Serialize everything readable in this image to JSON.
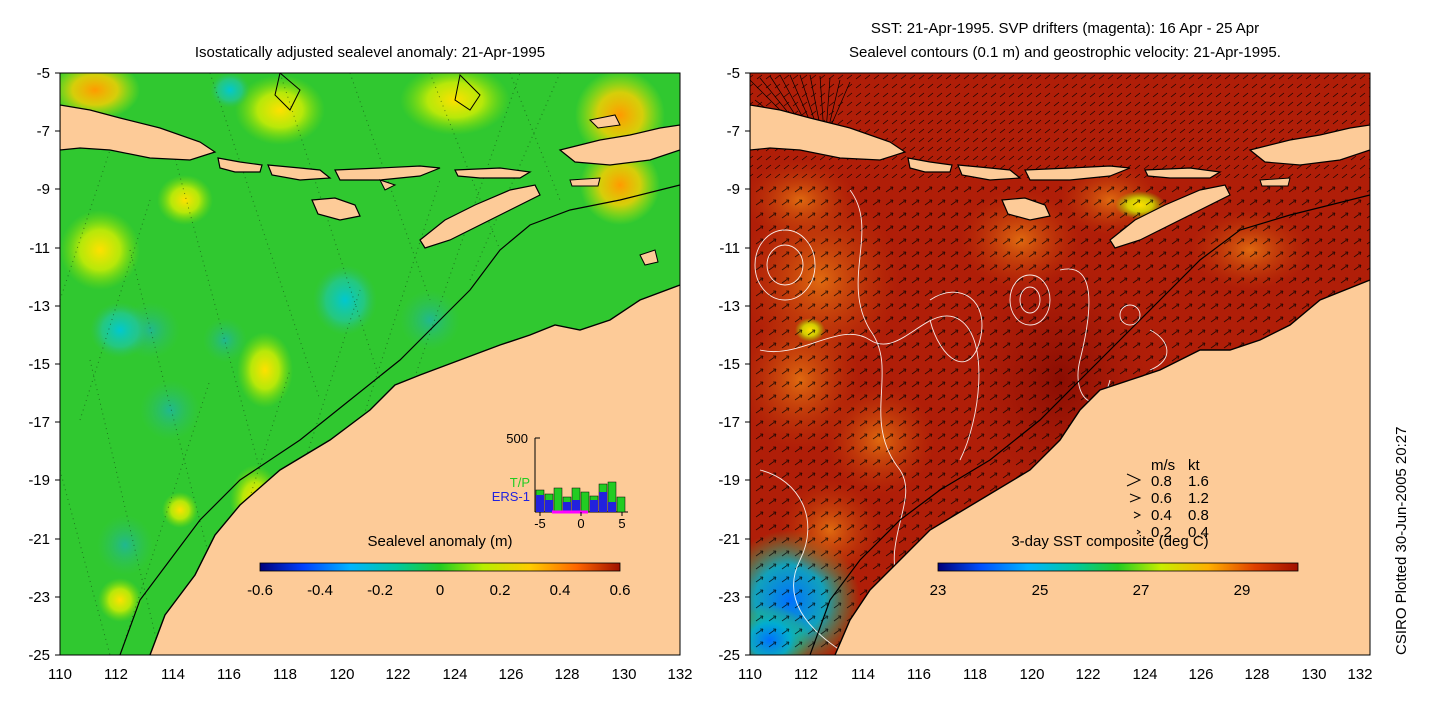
{
  "left_map": {
    "title": "Isostatically adjusted sealevel anomaly: 21-Apr-1995",
    "y_ticks": [
      "-5",
      "-7",
      "-9",
      "-11",
      "-13",
      "-15",
      "-17",
      "-19",
      "-21",
      "-23",
      "-25"
    ],
    "x_ticks": [
      "110",
      "112",
      "114",
      "116",
      "118",
      "120",
      "122",
      "124",
      "126",
      "128",
      "130",
      "132"
    ],
    "colorbar": {
      "title": "Sealevel anomaly (m)",
      "ticks": [
        "-0.6",
        "-0.4",
        "-0.2",
        "0",
        "0.2",
        "0.4",
        "0.6"
      ]
    },
    "inset": {
      "y_top_label": "500",
      "x_labels": [
        "-5",
        "0",
        "5"
      ],
      "legend": [
        {
          "label": "T/P",
          "color": "#22cc22"
        },
        {
          "label": "ERS-1",
          "color": "#2222dd"
        }
      ]
    }
  },
  "right_map": {
    "title_line1": "SST: 21-Apr-1995. SVP drifters (magenta): 16 Apr - 25 Apr",
    "title_line2": "Sealevel contours (0.1 m) and geostrophic velocity: 21-Apr-1995.",
    "y_ticks": [
      "-5",
      "-7",
      "-9",
      "-11",
      "-13",
      "-15",
      "-17",
      "-19",
      "-21",
      "-23",
      "-25"
    ],
    "x_ticks": [
      "110",
      "112",
      "114",
      "116",
      "118",
      "120",
      "122",
      "124",
      "126",
      "128",
      "130",
      "132"
    ],
    "colorbar": {
      "title": "3-day SST composite (deg C)",
      "ticks": [
        "23",
        "25",
        "27",
        "29"
      ]
    },
    "velocity_key": {
      "header": [
        "m/s",
        "kt"
      ],
      "rows": [
        [
          "0.8",
          "1.6"
        ],
        [
          "0.6",
          "1.2"
        ],
        [
          "0.4",
          "0.8"
        ],
        [
          "0.2",
          "0.4"
        ]
      ]
    }
  },
  "footer_vertical": "CSIRO Plotted 30-Jun-2005 20:27",
  "colors": {
    "land": "#fdcb98",
    "sea_anomaly_base": "#22cc22",
    "sst_base": "#b01e08"
  }
}
